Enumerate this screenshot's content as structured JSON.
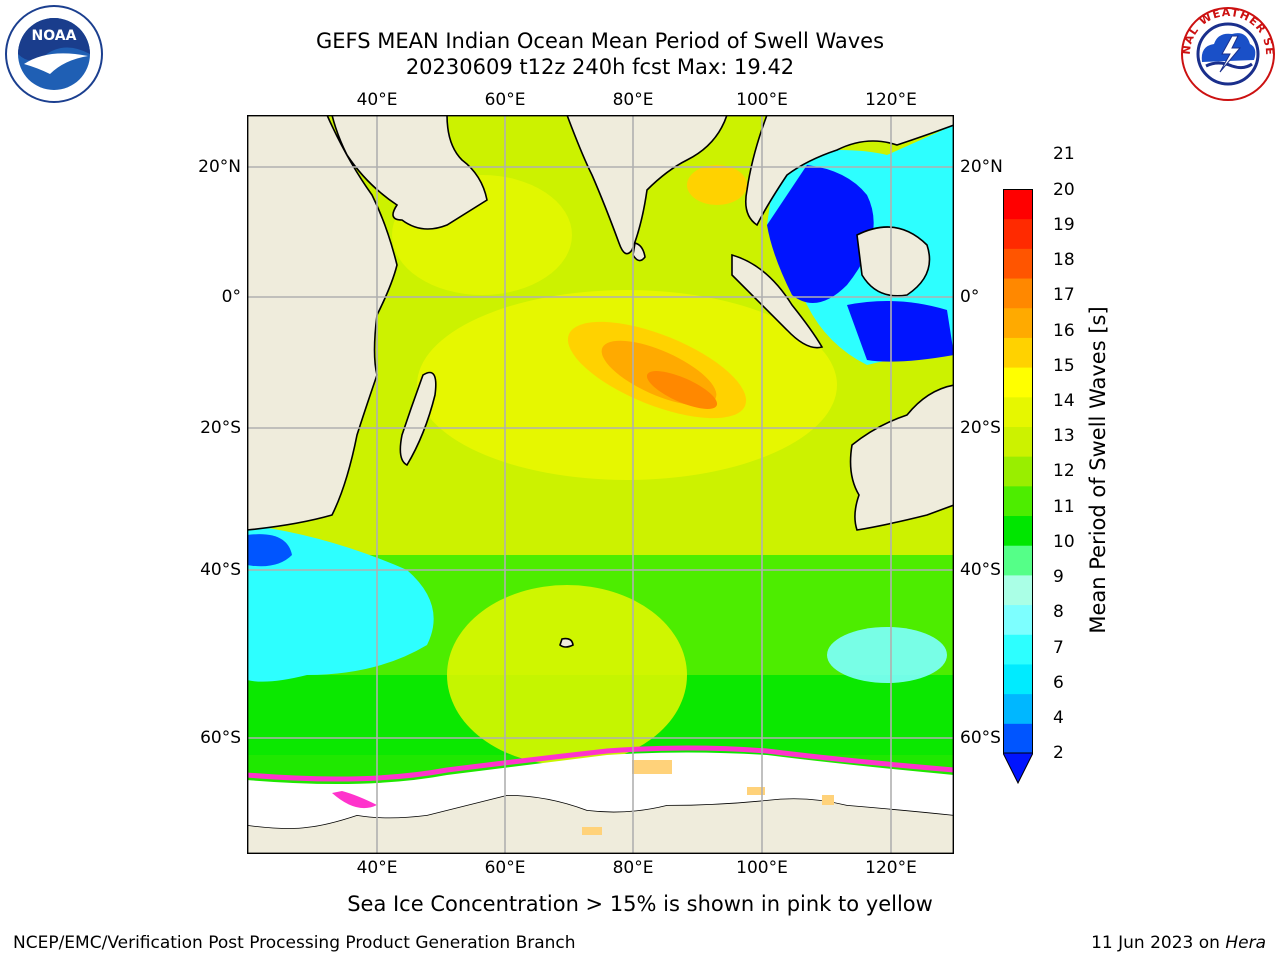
{
  "header": {
    "title_line1": "GEFS MEAN Indian Ocean Mean Period of Swell Waves",
    "title_line2": "20230609 t12z 240h fcst   Max: 19.42"
  },
  "logos": {
    "left": "NOAA",
    "left_ring_text": "NATIONAL OCEANIC AND ATMOSPHERIC ADMINISTRATION · U.S. DEPARTMENT OF COMMERCE",
    "right_ring_text": "NATIONAL WEATHER SERVICE"
  },
  "map": {
    "lon_ticks": [
      "40°E",
      "60°E",
      "80°E",
      "100°E",
      "120°E"
    ],
    "lat_ticks_left": [
      "20°N",
      "0°",
      "20°S",
      "40°S",
      "60°S"
    ],
    "lat_ticks_right": [
      "20°N",
      "0°",
      "20°S",
      "40°S",
      "60°S"
    ],
    "colors": {
      "land": "#efecdc",
      "ice_free": "#ffffff",
      "grid": "#b0b0b0",
      "sea_ice_pink": "#ff33cc",
      "sea_ice_yellow": "#ffd27a"
    }
  },
  "colorbar": {
    "label": "Mean Period of Swell Waves [s]",
    "tick_labels": [
      "2",
      "4",
      "6",
      "7",
      "8",
      "9",
      "10",
      "11",
      "12",
      "13",
      "14",
      "15",
      "16",
      "17",
      "18",
      "19",
      "20",
      "21"
    ],
    "colors": [
      "#0055ff",
      "#00b7ff",
      "#00ebff",
      "#2dffff",
      "#7dffff",
      "#aaffe6",
      "#55ff88",
      "#00e600",
      "#4ded00",
      "#99ee00",
      "#ccf200",
      "#e6f700",
      "#ffff00",
      "#ffd200",
      "#ffaa00",
      "#ff8800",
      "#ff5500",
      "#ff2a00",
      "#ff0000"
    ],
    "extend_color": "#0014ff"
  },
  "caption": "Sea Ice Concentration > 15% is shown in pink to yellow",
  "footer": {
    "left": "NCEP/EMC/Verification Post Processing Product Generation Branch",
    "right_date": "11 Jun 2023 on ",
    "right_host": "Hera"
  }
}
